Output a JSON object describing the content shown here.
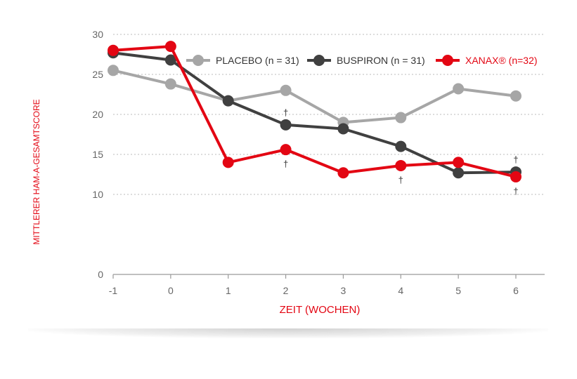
{
  "chart_data": {
    "type": "line",
    "xlabel": "ZEIT (WOCHEN)",
    "ylabel": "MITTLERER HAM-A-GESAMTSCORE",
    "x": [
      -1,
      0,
      1,
      2,
      3,
      4,
      5,
      6
    ],
    "x_tick_labels": [
      "-1",
      "0",
      "1",
      "2",
      "3",
      "4",
      "5",
      "6"
    ],
    "y_ticks": [
      0,
      10,
      15,
      20,
      25,
      30
    ],
    "ylim": [
      0,
      30
    ],
    "grid": "horizontal dotted",
    "legend_position": "top-right",
    "series": [
      {
        "name": "PLACEBO (n = 31)",
        "color": "#a6a6a6",
        "values": [
          25.5,
          23.8,
          21.7,
          23.0,
          19.0,
          19.6,
          23.2,
          22.3
        ]
      },
      {
        "name": "BUSPIRON (n = 31)",
        "color": "#404040",
        "values": [
          27.7,
          26.8,
          21.7,
          18.7,
          18.2,
          16.0,
          12.7,
          12.8
        ]
      },
      {
        "name": "XANAX® (n=32)",
        "color": "#e30613",
        "values": [
          28.0,
          28.5,
          14.0,
          15.6,
          12.7,
          13.6,
          14.0,
          12.2
        ]
      }
    ],
    "annotations": [
      {
        "text": "†",
        "x": 2,
        "y": 18.7,
        "side": "above",
        "series": "BUSPIRON (n = 31)"
      },
      {
        "text": "†",
        "x": 2,
        "y": 15.6,
        "side": "below",
        "series": "XANAX® (n=32)"
      },
      {
        "text": "†",
        "x": 4,
        "y": 13.6,
        "side": "below",
        "series": "XANAX® (n=32)"
      },
      {
        "text": "†",
        "x": 6,
        "y": 12.8,
        "side": "above",
        "series": "BUSPIRON (n = 31)"
      },
      {
        "text": "†",
        "x": 6,
        "y": 12.2,
        "side": "below",
        "series": "XANAX® (n=32)"
      }
    ],
    "colors": {
      "axis_label": "#e30613",
      "tick": "#666666",
      "grid": "#bbbbbb"
    }
  }
}
